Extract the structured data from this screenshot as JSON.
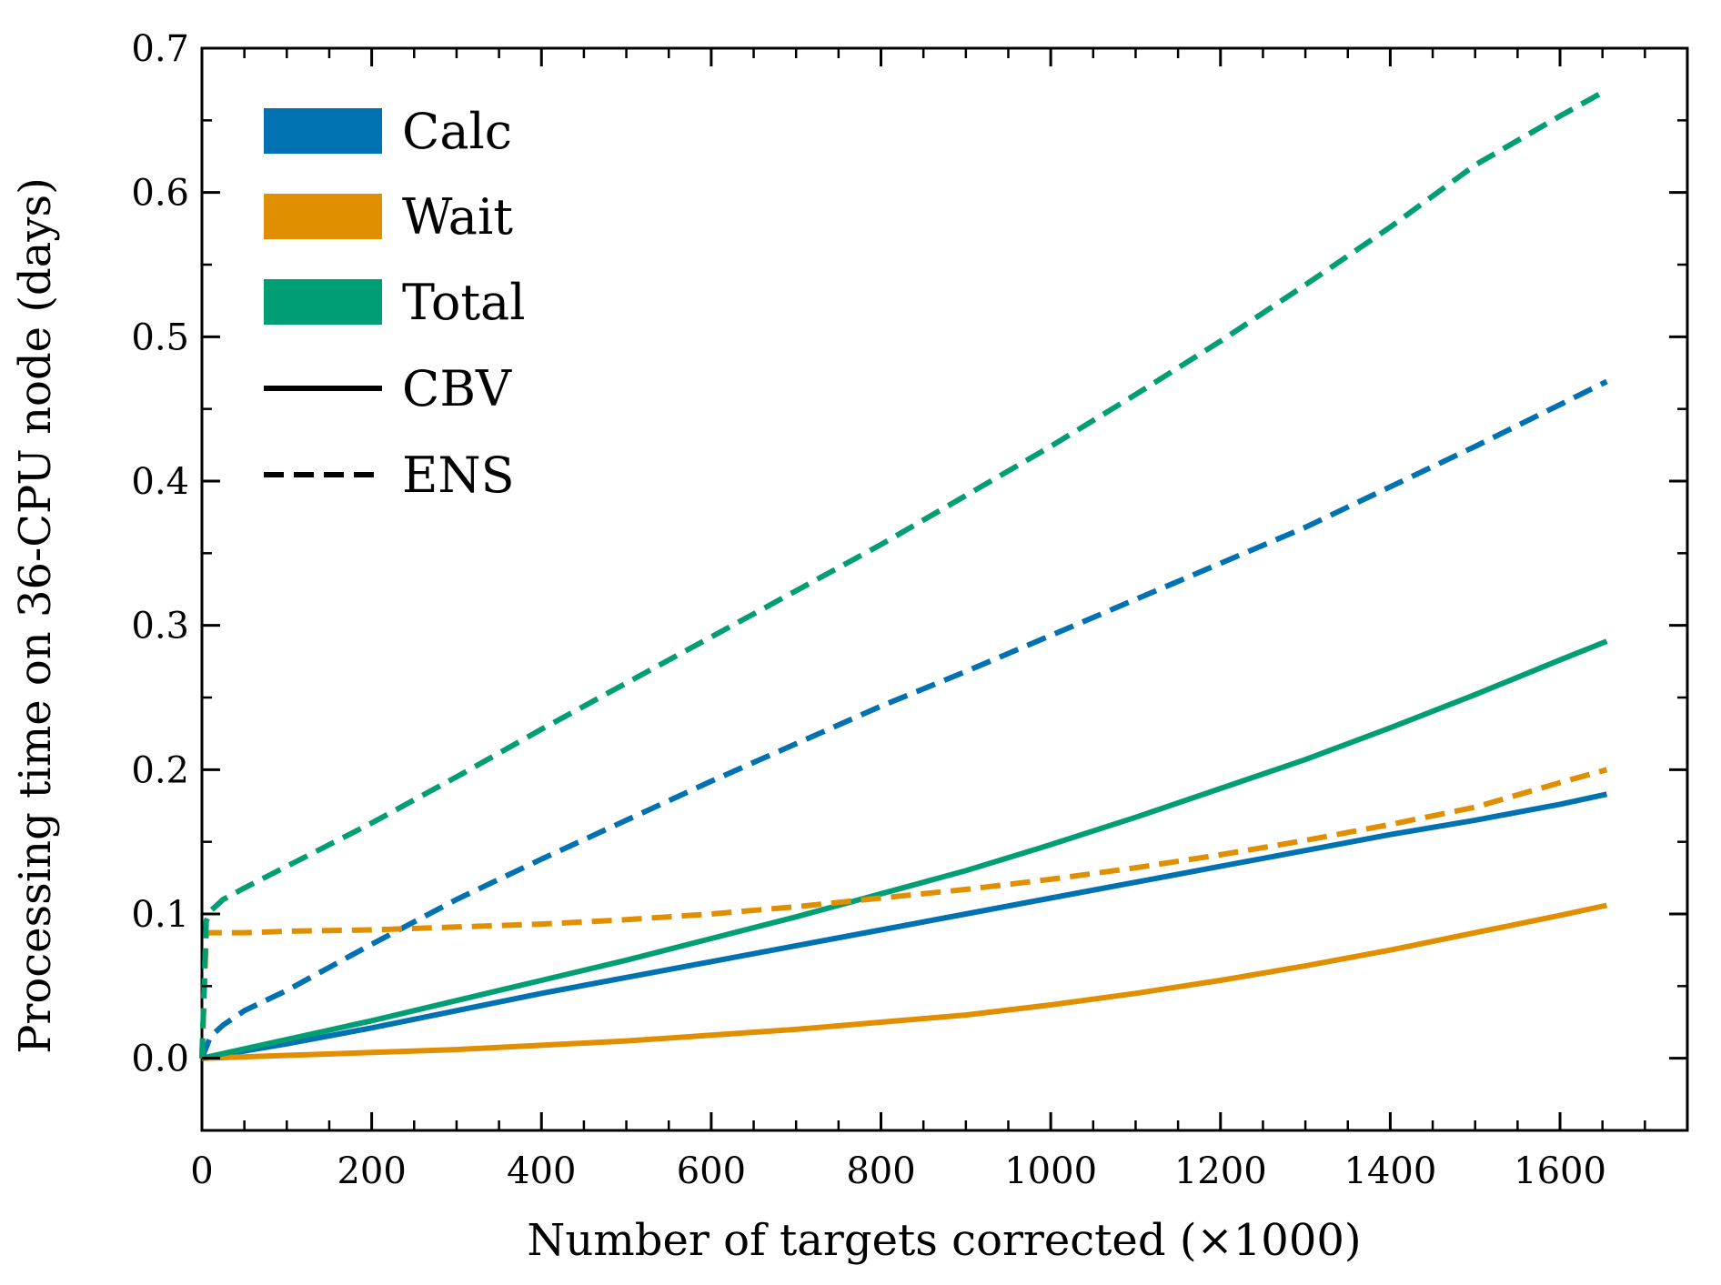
{
  "chart_data": {
    "type": "line",
    "title": "",
    "xlabel": "Number of targets corrected (×1000)",
    "ylabel": "Processing time on 36-CPU node (days)",
    "xlim": [
      0,
      1750
    ],
    "ylim": [
      -0.05,
      0.7
    ],
    "x_ticks": [
      0,
      200,
      400,
      600,
      800,
      1000,
      1200,
      1400,
      1600
    ],
    "x_tick_labels": [
      "0",
      "200",
      "400",
      "600",
      "800",
      "1000",
      "1200",
      "1400",
      "1600"
    ],
    "y_ticks": [
      0.0,
      0.1,
      0.2,
      0.3,
      0.4,
      0.5,
      0.6,
      0.7
    ],
    "y_tick_labels": [
      "0.0",
      "0.1",
      "0.2",
      "0.3",
      "0.4",
      "0.5",
      "0.6",
      "0.7"
    ],
    "grid": false,
    "legend_position": "top-left",
    "legend": {
      "colors": [
        {
          "label": "Calc",
          "color": "#0072b2"
        },
        {
          "label": "Wait",
          "color": "#e08f00"
        },
        {
          "label": "Total",
          "color": "#009e73"
        }
      ],
      "styles": [
        {
          "label": "CBV",
          "dash": "solid"
        },
        {
          "label": "ENS",
          "dash": "dashed"
        }
      ]
    },
    "series": [
      {
        "name": "Calc CBV",
        "color": "#0072b2",
        "dash": "solid",
        "x": [
          0,
          100,
          200,
          300,
          400,
          500,
          600,
          700,
          800,
          900,
          1000,
          1100,
          1200,
          1300,
          1400,
          1500,
          1600,
          1655
        ],
        "y": [
          0.0,
          0.01,
          0.021,
          0.033,
          0.045,
          0.056,
          0.067,
          0.078,
          0.089,
          0.1,
          0.111,
          0.122,
          0.133,
          0.144,
          0.155,
          0.165,
          0.176,
          0.183
        ]
      },
      {
        "name": "Wait CBV",
        "color": "#e08f00",
        "dash": "solid",
        "x": [
          0,
          100,
          200,
          300,
          400,
          500,
          600,
          700,
          800,
          900,
          1000,
          1100,
          1200,
          1300,
          1400,
          1500,
          1600,
          1655
        ],
        "y": [
          0.0,
          0.002,
          0.004,
          0.006,
          0.009,
          0.012,
          0.016,
          0.02,
          0.025,
          0.03,
          0.037,
          0.045,
          0.054,
          0.064,
          0.075,
          0.087,
          0.099,
          0.106
        ]
      },
      {
        "name": "Total CBV",
        "color": "#009e73",
        "dash": "solid",
        "x": [
          0,
          100,
          200,
          300,
          400,
          500,
          600,
          700,
          800,
          900,
          1000,
          1100,
          1200,
          1300,
          1400,
          1500,
          1600,
          1655
        ],
        "y": [
          0.0,
          0.013,
          0.026,
          0.04,
          0.054,
          0.068,
          0.083,
          0.098,
          0.114,
          0.13,
          0.148,
          0.167,
          0.187,
          0.207,
          0.229,
          0.252,
          0.276,
          0.289
        ]
      },
      {
        "name": "Calc ENS",
        "color": "#0072b2",
        "dash": "dashed",
        "x": [
          0,
          10,
          25,
          50,
          100,
          150,
          200,
          300,
          400,
          500,
          600,
          700,
          800,
          900,
          1000,
          1100,
          1200,
          1300,
          1400,
          1500,
          1600,
          1655
        ],
        "y": [
          0.0,
          0.015,
          0.023,
          0.033,
          0.047,
          0.063,
          0.079,
          0.11,
          0.138,
          0.165,
          0.192,
          0.218,
          0.244,
          0.268,
          0.293,
          0.318,
          0.343,
          0.368,
          0.396,
          0.424,
          0.453,
          0.469
        ]
      },
      {
        "name": "Wait ENS",
        "color": "#e08f00",
        "dash": "dashed",
        "x": [
          0,
          5,
          10,
          50,
          100,
          200,
          300,
          400,
          500,
          600,
          700,
          800,
          900,
          1000,
          1100,
          1200,
          1300,
          1400,
          1500,
          1600,
          1655
        ],
        "y": [
          0.0,
          0.086,
          0.087,
          0.087,
          0.088,
          0.089,
          0.091,
          0.093,
          0.096,
          0.1,
          0.105,
          0.111,
          0.117,
          0.124,
          0.132,
          0.141,
          0.151,
          0.162,
          0.174,
          0.191,
          0.2
        ]
      },
      {
        "name": "Total ENS",
        "color": "#009e73",
        "dash": "dashed",
        "x": [
          0,
          5,
          10,
          25,
          50,
          100,
          200,
          300,
          400,
          500,
          600,
          700,
          800,
          900,
          1000,
          1100,
          1200,
          1300,
          1400,
          1500,
          1600,
          1655
        ],
        "y": [
          0.0,
          0.095,
          0.102,
          0.11,
          0.118,
          0.133,
          0.163,
          0.195,
          0.228,
          0.26,
          0.292,
          0.324,
          0.356,
          0.39,
          0.424,
          0.46,
          0.497,
          0.536,
          0.576,
          0.619,
          0.653,
          0.671
        ]
      }
    ]
  }
}
